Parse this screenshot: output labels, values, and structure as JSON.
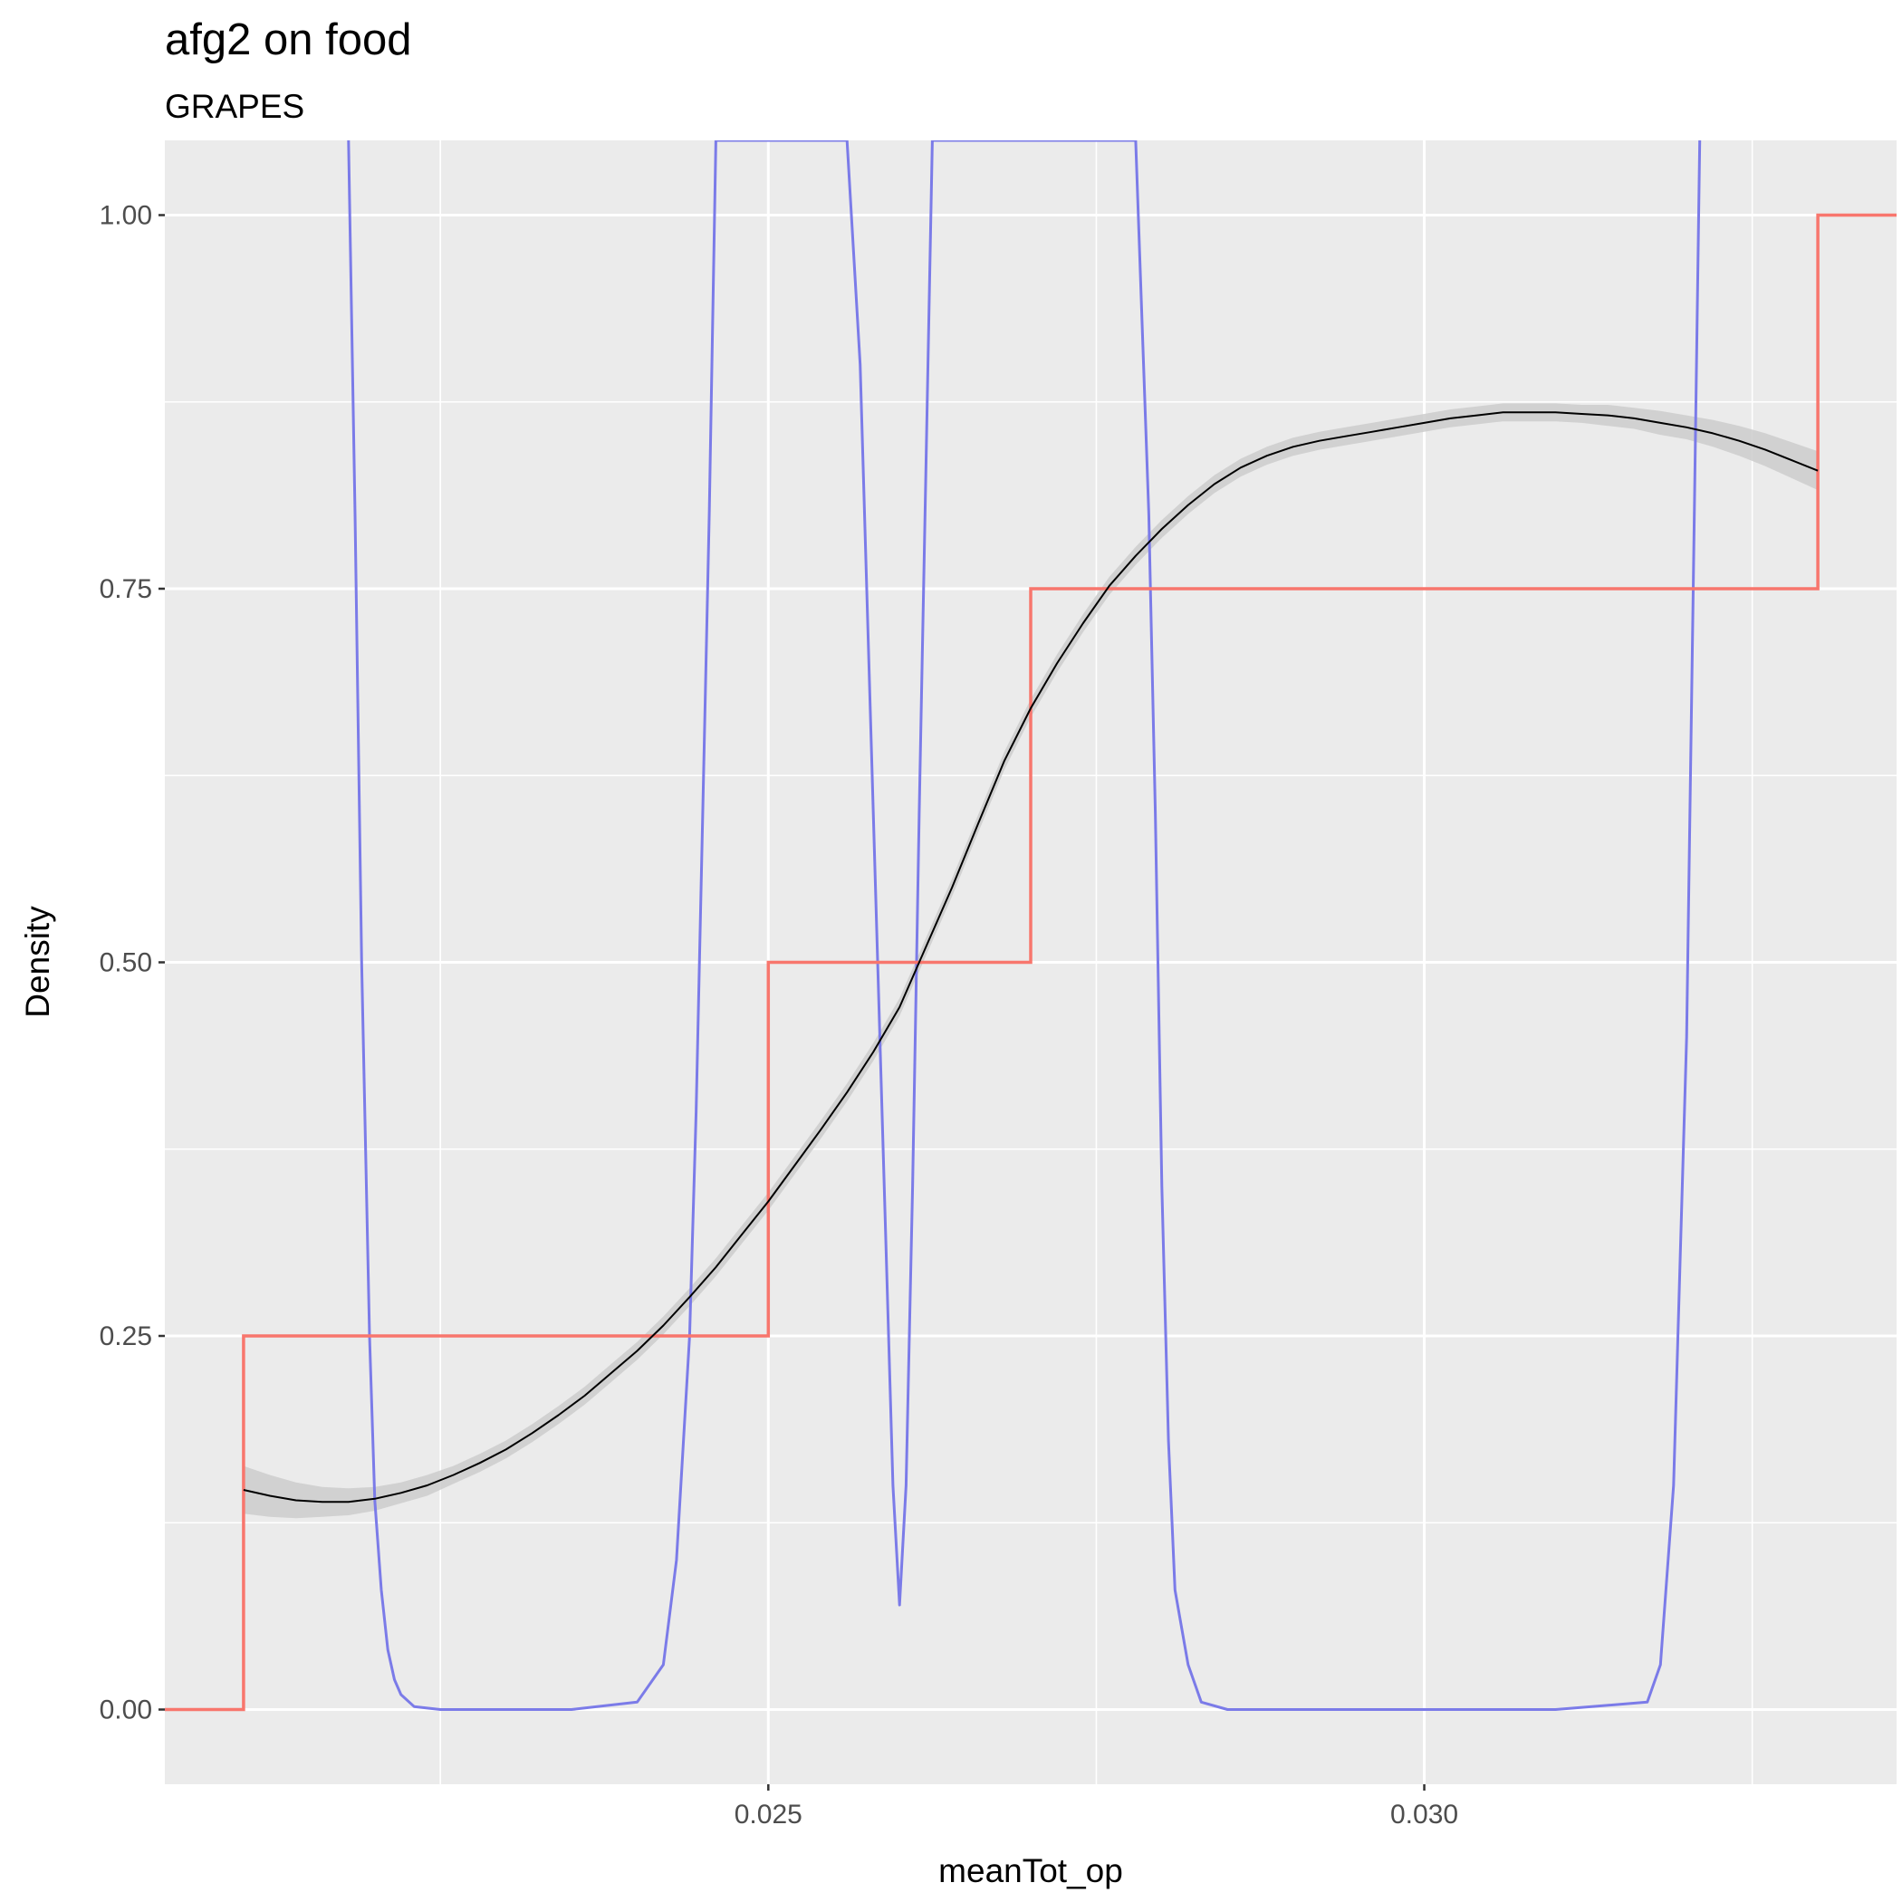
{
  "chart_data": {
    "type": "line",
    "title": "afg2 on food",
    "subtitle": "GRAPES",
    "xlabel": "meanTot_op",
    "ylabel": "Density",
    "xlim": [
      0.0204,
      0.0336
    ],
    "ylim": [
      -0.05,
      1.05
    ],
    "x_ticks": [
      {
        "value": 0.025,
        "label": "0.025"
      },
      {
        "value": 0.03,
        "label": "0.030"
      }
    ],
    "x_minor_ticks": [
      0.0225,
      0.0275,
      0.0325
    ],
    "y_ticks": [
      {
        "value": 0.0,
        "label": "0.00"
      },
      {
        "value": 0.25,
        "label": "0.25"
      },
      {
        "value": 0.5,
        "label": "0.50"
      },
      {
        "value": 0.75,
        "label": "0.75"
      },
      {
        "value": 1.0,
        "label": "1.00"
      }
    ],
    "y_minor_ticks": [
      0.125,
      0.375,
      0.625,
      0.875
    ],
    "grid": true,
    "background": "#ebebeb",
    "series": [
      {
        "kind": "step",
        "color": "#f8766d",
        "x": [
          0.0204,
          0.021,
          0.021,
          0.025,
          0.025,
          0.027,
          0.027,
          0.033,
          0.033,
          0.0336
        ],
        "y": [
          0.0,
          0.0,
          0.25,
          0.25,
          0.5,
          0.5,
          0.75,
          0.75,
          1.0,
          1.0
        ]
      },
      {
        "kind": "density",
        "color": "#7b7be8",
        "x": [
          0.0218,
          0.02185,
          0.0219,
          0.02196,
          0.022,
          0.02205,
          0.0221,
          0.02215,
          0.0222,
          0.0223,
          0.0225,
          0.023,
          0.0235,
          0.024,
          0.0242,
          0.0243,
          0.0244,
          0.02445,
          0.0245,
          0.02455,
          0.0246,
          0.0247,
          0.0248,
          0.025,
          0.0252,
          0.0254,
          0.0255,
          0.0256,
          0.0257,
          0.0258,
          0.0259,
          0.02595,
          0.026,
          0.02605,
          0.0261,
          0.02615,
          0.02625,
          0.0264,
          0.02655,
          0.0266,
          0.0267,
          0.0269,
          0.0271,
          0.0273,
          0.0275,
          0.0277,
          0.0278,
          0.0279,
          0.02795,
          0.028,
          0.02805,
          0.0281,
          0.0282,
          0.0283,
          0.0285,
          0.029,
          0.03,
          0.031,
          0.0317,
          0.0318,
          0.0319,
          0.032,
          0.03205,
          0.0321
        ],
        "y": [
          1.05,
          0.8,
          0.5,
          0.25,
          0.14,
          0.08,
          0.04,
          0.02,
          0.01,
          0.002,
          0.0,
          0.0,
          0.0,
          0.005,
          0.03,
          0.1,
          0.25,
          0.4,
          0.6,
          0.8,
          1.05,
          1.05,
          1.05,
          1.05,
          1.05,
          1.05,
          1.05,
          1.05,
          0.9,
          0.6,
          0.3,
          0.15,
          0.07,
          0.15,
          0.35,
          0.6,
          1.05,
          1.05,
          1.05,
          1.05,
          1.05,
          1.05,
          1.05,
          1.05,
          1.05,
          1.05,
          1.05,
          0.8,
          0.6,
          0.35,
          0.18,
          0.08,
          0.03,
          0.005,
          0.0,
          0.0,
          0.0,
          0.0,
          0.005,
          0.03,
          0.15,
          0.45,
          0.75,
          1.05
        ]
      },
      {
        "kind": "smooth",
        "color": "#000000",
        "band_color": "#cccccc",
        "x": [
          0.021,
          0.0212,
          0.0214,
          0.0216,
          0.0218,
          0.022,
          0.0222,
          0.0224,
          0.0226,
          0.0228,
          0.023,
          0.0232,
          0.0234,
          0.0236,
          0.0238,
          0.024,
          0.0242,
          0.0244,
          0.0246,
          0.0248,
          0.025,
          0.0252,
          0.0254,
          0.0256,
          0.0258,
          0.026,
          0.0262,
          0.0264,
          0.0266,
          0.0268,
          0.027,
          0.0272,
          0.0274,
          0.0276,
          0.0278,
          0.028,
          0.0282,
          0.0284,
          0.0286,
          0.0288,
          0.029,
          0.0292,
          0.0294,
          0.0296,
          0.0298,
          0.03,
          0.0302,
          0.0304,
          0.0306,
          0.0308,
          0.031,
          0.0312,
          0.0314,
          0.0316,
          0.0318,
          0.032,
          0.0322,
          0.0324,
          0.0326,
          0.0328,
          0.033
        ],
        "y": [
          0.147,
          0.143,
          0.14,
          0.139,
          0.139,
          0.141,
          0.145,
          0.15,
          0.157,
          0.165,
          0.174,
          0.185,
          0.197,
          0.21,
          0.225,
          0.24,
          0.257,
          0.276,
          0.296,
          0.318,
          0.34,
          0.364,
          0.388,
          0.413,
          0.44,
          0.47,
          0.51,
          0.55,
          0.593,
          0.635,
          0.67,
          0.7,
          0.727,
          0.752,
          0.772,
          0.79,
          0.806,
          0.82,
          0.831,
          0.839,
          0.845,
          0.849,
          0.852,
          0.855,
          0.858,
          0.861,
          0.864,
          0.866,
          0.868,
          0.868,
          0.868,
          0.867,
          0.866,
          0.864,
          0.861,
          0.858,
          0.854,
          0.849,
          0.843,
          0.836,
          0.829
        ],
        "band_halfwidth": [
          0.016,
          0.014,
          0.012,
          0.01,
          0.009,
          0.008,
          0.007,
          0.007,
          0.006,
          0.006,
          0.006,
          0.006,
          0.006,
          0.006,
          0.006,
          0.006,
          0.006,
          0.006,
          0.006,
          0.006,
          0.006,
          0.006,
          0.006,
          0.006,
          0.006,
          0.006,
          0.006,
          0.006,
          0.006,
          0.006,
          0.006,
          0.006,
          0.006,
          0.006,
          0.006,
          0.006,
          0.006,
          0.006,
          0.006,
          0.006,
          0.006,
          0.006,
          0.006,
          0.006,
          0.006,
          0.006,
          0.006,
          0.006,
          0.006,
          0.006,
          0.006,
          0.006,
          0.007,
          0.007,
          0.008,
          0.008,
          0.009,
          0.01,
          0.011,
          0.012,
          0.013
        ]
      }
    ]
  }
}
